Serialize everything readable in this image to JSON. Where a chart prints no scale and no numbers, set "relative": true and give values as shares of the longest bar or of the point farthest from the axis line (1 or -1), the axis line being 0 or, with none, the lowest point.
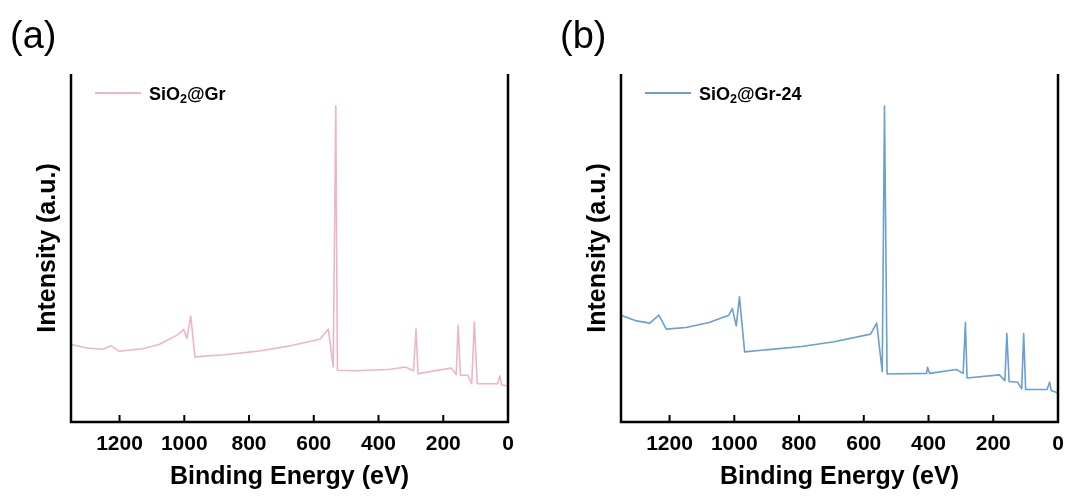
{
  "chart_data": [
    {
      "type": "line",
      "title": "(a)",
      "xlabel": "Binding Energy (eV)",
      "ylabel": "Intensity (a.u.)",
      "relative": true,
      "tick_labels": "x",
      "legend": "top left",
      "xlim": [
        1350,
        0
      ],
      "xticks": [
        1200,
        1000,
        800,
        600,
        400,
        200,
        0
      ],
      "series": [
        {
          "name": "SiO$_{2}$@Gr",
          "color": "#f0b4c9",
          "x": [
            1349,
            1301,
            1251,
            1226,
            1202,
            1129,
            1078,
            1022,
            1002,
            992,
            980,
            967,
            875,
            774,
            672,
            581,
            555,
            540,
            532,
            527,
            469,
            368,
            317,
            292,
            284,
            278,
            175,
            160,
            154,
            147,
            124,
            112,
            104,
            95,
            32,
            25,
            20,
            2
          ],
          "values": [
            0.245,
            0.234,
            0.23,
            0.241,
            0.224,
            0.232,
            0.245,
            0.275,
            0.293,
            0.264,
            0.335,
            0.206,
            0.213,
            0.224,
            0.241,
            0.262,
            0.294,
            0.174,
            1.0,
            0.164,
            0.162,
            0.166,
            0.174,
            0.162,
            0.294,
            0.153,
            0.171,
            0.15,
            0.306,
            0.148,
            0.148,
            0.121,
            0.317,
            0.121,
            0.121,
            0.146,
            0.118,
            0.114
          ]
        }
      ]
    },
    {
      "type": "line",
      "title": "(b)",
      "xlabel": "Binding Energy (eV)",
      "ylabel": "Intensity (a.u.)",
      "relative": true,
      "tick_labels": "x",
      "legend": "top left",
      "xlim": [
        1350,
        0
      ],
      "xticks": [
        1200,
        1000,
        800,
        600,
        400,
        200,
        0
      ],
      "series": [
        {
          "name": "SiO$_{2}$@Gr-24",
          "color": "#6a9fd3",
          "x": [
            1350,
            1302,
            1261,
            1233,
            1210,
            1149,
            1078,
            1017,
            1006,
            994,
            984,
            968,
            894,
            792,
            691,
            579,
            560,
            543,
            536,
            528,
            406,
            403,
            397,
            314,
            293,
            286,
            281,
            181,
            164,
            158,
            151,
            125,
            112,
            106,
            100,
            34,
            26,
            21,
            0
          ],
          "values": [
            0.338,
            0.32,
            0.313,
            0.338,
            0.294,
            0.299,
            0.315,
            0.338,
            0.359,
            0.304,
            0.396,
            0.222,
            0.229,
            0.239,
            0.254,
            0.278,
            0.313,
            0.159,
            1.0,
            0.152,
            0.154,
            0.173,
            0.154,
            0.166,
            0.154,
            0.315,
            0.139,
            0.149,
            0.131,
            0.28,
            0.128,
            0.126,
            0.105,
            0.28,
            0.103,
            0.103,
            0.126,
            0.1,
            0.092
          ]
        }
      ]
    }
  ]
}
